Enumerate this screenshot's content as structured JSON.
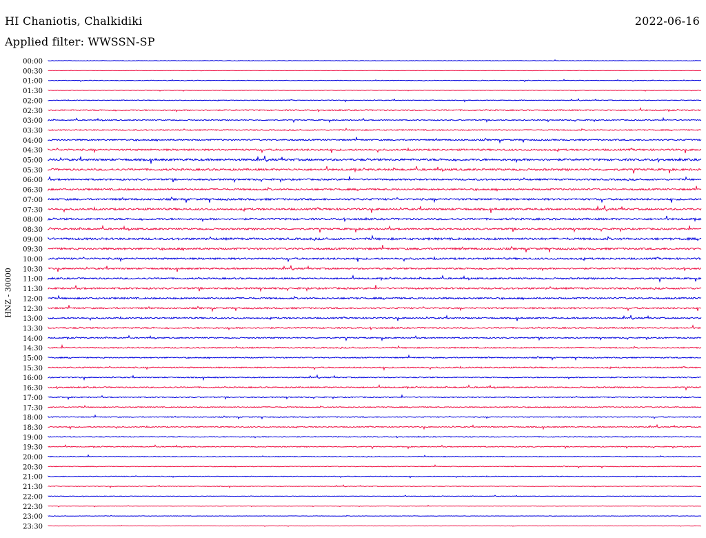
{
  "header": {
    "station": "HI Chaniotis, Chalkidiki",
    "date": "2022-06-16",
    "filter_label": "Applied filter: WWSSN-SP"
  },
  "chart_data": {
    "type": "line",
    "title": "HI Chaniotis, Chalkidiki",
    "ylabel": "HNZ - 30000",
    "row_labels": [
      "00:00",
      "00:30",
      "01:00",
      "01:30",
      "02:00",
      "02:30",
      "03:00",
      "03:30",
      "04:00",
      "04:30",
      "05:00",
      "05:30",
      "06:00",
      "06:30",
      "07:00",
      "07:30",
      "08:00",
      "08:30",
      "09:00",
      "09:30",
      "10:00",
      "10:30",
      "11:00",
      "11:30",
      "12:00",
      "12:30",
      "13:00",
      "13:30",
      "14:00",
      "14:30",
      "15:00",
      "15:30",
      "16:00",
      "16:30",
      "17:00",
      "17:30",
      "18:00",
      "18:30",
      "19:00",
      "19:30",
      "20:00",
      "20:30",
      "21:00",
      "21:30",
      "22:00",
      "22:30",
      "23:00",
      "23:30"
    ],
    "trace_noise_level": [
      0.2,
      0.15,
      0.3,
      0.2,
      0.35,
      0.6,
      0.5,
      0.55,
      0.7,
      0.85,
      1.0,
      0.95,
      0.8,
      0.85,
      0.9,
      0.95,
      0.9,
      0.85,
      1.0,
      0.95,
      0.85,
      0.8,
      0.75,
      0.85,
      0.8,
      0.75,
      0.7,
      0.7,
      0.6,
      0.6,
      0.55,
      0.6,
      0.55,
      0.6,
      0.5,
      0.5,
      0.45,
      0.5,
      0.45,
      0.45,
      0.4,
      0.35,
      0.35,
      0.3,
      0.25,
      0.2,
      0.2,
      0.15
    ],
    "legend": [],
    "colors": {
      "even_rows": "#0000dd",
      "odd_rows": "#ee1144"
    }
  }
}
